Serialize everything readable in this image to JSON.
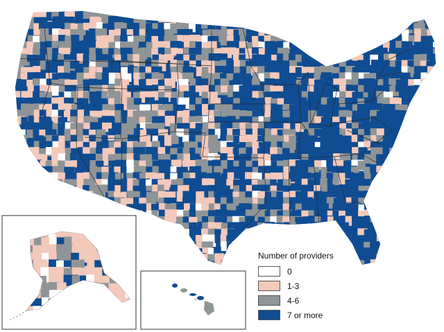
{
  "map": {
    "region": "United States counties",
    "insets": [
      "Alaska",
      "Hawaii"
    ],
    "colors": {
      "zero": "#ffffff",
      "one_to_three": "#f3c9bb",
      "four_to_six": "#8f9497",
      "seven_plus": "#0f4c92",
      "border": "#333333"
    }
  },
  "legend": {
    "title": "Number of providers",
    "items": [
      {
        "label": "0",
        "color": "#ffffff"
      },
      {
        "label": "1-3",
        "color": "#f3c9bb"
      },
      {
        "label": "4-6",
        "color": "#8f9497"
      },
      {
        "label": "7 or more",
        "color": "#0f4c92"
      }
    ]
  }
}
